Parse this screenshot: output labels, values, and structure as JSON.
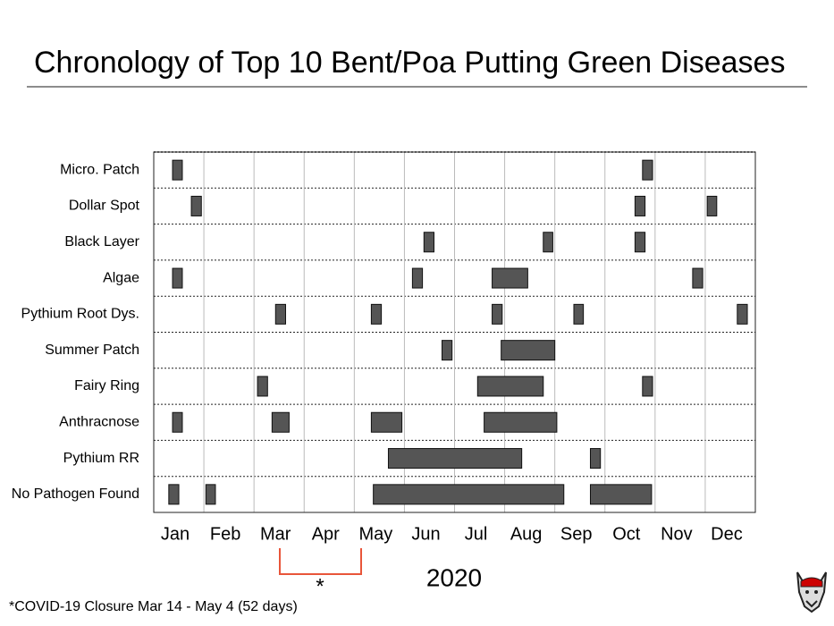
{
  "chart_data": {
    "type": "timeline",
    "title": "Chronology of Top 10 Bent/Poa Putting Green Diseases",
    "xlabel": "2020",
    "annotation": "*COVID-19 Closure Mar 14 - May 4 (52 days)",
    "marker": "*",
    "color": "#555555",
    "xlim": [
      0,
      12
    ],
    "xticks": [
      {
        "value": 0.5,
        "label": "Jan"
      },
      {
        "value": 1.5,
        "label": "Feb"
      },
      {
        "value": 2.5,
        "label": "Mar"
      },
      {
        "value": 3.5,
        "label": "Apr"
      },
      {
        "value": 4.5,
        "label": "May"
      },
      {
        "value": 5.5,
        "label": "Jun"
      },
      {
        "value": 6.5,
        "label": "Jul"
      },
      {
        "value": 7.5,
        "label": "Aug"
      },
      {
        "value": 8.5,
        "label": "Sep"
      },
      {
        "value": 9.5,
        "label": "Oct"
      },
      {
        "value": 10.5,
        "label": "Nov"
      },
      {
        "value": 11.5,
        "label": "Dec"
      }
    ],
    "series": [
      {
        "name": "Micro. Patch",
        "segments": [
          [
            0.375,
            0.57
          ],
          [
            9.75,
            9.95
          ]
        ]
      },
      {
        "name": "Dollar Spot",
        "segments": [
          [
            0.75,
            0.95
          ],
          [
            9.6,
            9.8
          ],
          [
            11.04,
            11.23
          ]
        ]
      },
      {
        "name": "Black Layer",
        "segments": [
          [
            5.39,
            5.59
          ],
          [
            7.77,
            7.96
          ],
          [
            9.6,
            9.8
          ]
        ]
      },
      {
        "name": "Algae",
        "segments": [
          [
            0.375,
            0.57
          ],
          [
            5.16,
            5.36
          ],
          [
            6.75,
            7.46
          ],
          [
            10.75,
            10.95
          ]
        ]
      },
      {
        "name": "Pythium Root Dys.",
        "segments": [
          [
            2.43,
            2.63
          ],
          [
            4.34,
            4.54
          ],
          [
            6.75,
            6.95
          ],
          [
            8.38,
            8.57
          ],
          [
            11.64,
            11.84
          ]
        ]
      },
      {
        "name": "Summer Patch",
        "segments": [
          [
            5.75,
            5.95
          ],
          [
            6.93,
            8.0
          ]
        ]
      },
      {
        "name": "Fairy Ring",
        "segments": [
          [
            2.07,
            2.27
          ],
          [
            6.46,
            7.77
          ],
          [
            9.75,
            9.95
          ]
        ]
      },
      {
        "name": "Anthracnose",
        "segments": [
          [
            0.375,
            0.57
          ],
          [
            2.36,
            2.7
          ],
          [
            4.34,
            4.95
          ],
          [
            6.59,
            8.04
          ]
        ]
      },
      {
        "name": "Pythium RR",
        "segments": [
          [
            4.68,
            7.34
          ],
          [
            8.71,
            8.91
          ]
        ]
      },
      {
        "name": "No Pathogen Found",
        "segments": [
          [
            0.3,
            0.5
          ],
          [
            1.04,
            1.23
          ],
          [
            4.38,
            8.18
          ],
          [
            8.71,
            9.93
          ]
        ]
      }
    ]
  }
}
